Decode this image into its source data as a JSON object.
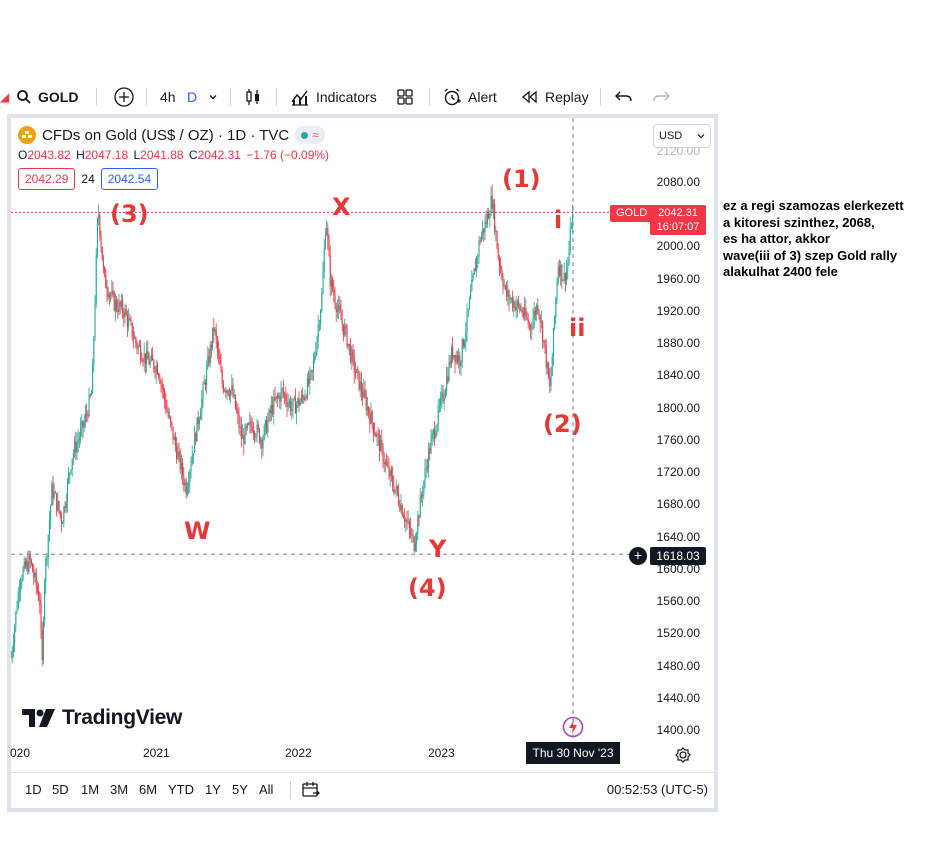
{
  "toolbar": {
    "symbol": "GOLD",
    "interval_4h": "4h",
    "interval_d": "D",
    "indicators_label": "Indicators",
    "alert_label": "Alert",
    "replay_label": "Replay"
  },
  "legend": {
    "title": "CFDs on Gold (US$ / OZ) · 1D · TVC",
    "wave_symbol": "≈",
    "ohlc": {
      "o_key": "O",
      "o_val": "2043.82",
      "h_key": "H",
      "h_val": "2047.18",
      "l_key": "L",
      "l_val": "2041.88",
      "c_key": "C",
      "c_val": "2042.31",
      "change": "−1.76 (−0.09%)"
    },
    "bid": "2042.29",
    "spread": "24",
    "ask": "2042.54"
  },
  "currency": "USD",
  "price_axis": {
    "top_partial": "2120.00",
    "labels": [
      "2080.00",
      "2000.00",
      "1960.00",
      "1920.00",
      "1880.00",
      "1840.00",
      "1800.00",
      "1760.00",
      "1720.00",
      "1680.00",
      "1640.00",
      "1600.00",
      "1560.00",
      "1520.00",
      "1480.00",
      "1440.00",
      "1400.00"
    ]
  },
  "tags": {
    "symbol_tag": "GOLD",
    "last_price": "2042.31",
    "countdown": "16:07:07",
    "crosshair_price": "1618.03",
    "crosshair_date": "Thu 30 Nov '23"
  },
  "time_axis": {
    "labels": [
      "020",
      "2021",
      "2022",
      "2023"
    ]
  },
  "waves": {
    "w3": "(3)",
    "w1": "(1)",
    "w2": "(2)",
    "w4": "(4)",
    "x": "X",
    "w": "W",
    "y": "Y",
    "i": "i",
    "ii": "ii"
  },
  "brand": "TradingView",
  "ranges": [
    "1D",
    "5D",
    "1M",
    "3M",
    "6M",
    "YTD",
    "1Y",
    "5Y",
    "All"
  ],
  "clock": "00:52:53 (UTC-5)",
  "note": {
    "lines": [
      "ez a regi szamozas elerkezett",
      "a kitoresi szinthez, 2068,",
      "es ha attor, akkor",
      "wave(iii of 3) szep Gold rally",
      "alakulhat 2400 fele"
    ]
  },
  "colors": {
    "up": "#22ab94",
    "down": "#f23645",
    "annotation": "#e53935"
  }
}
